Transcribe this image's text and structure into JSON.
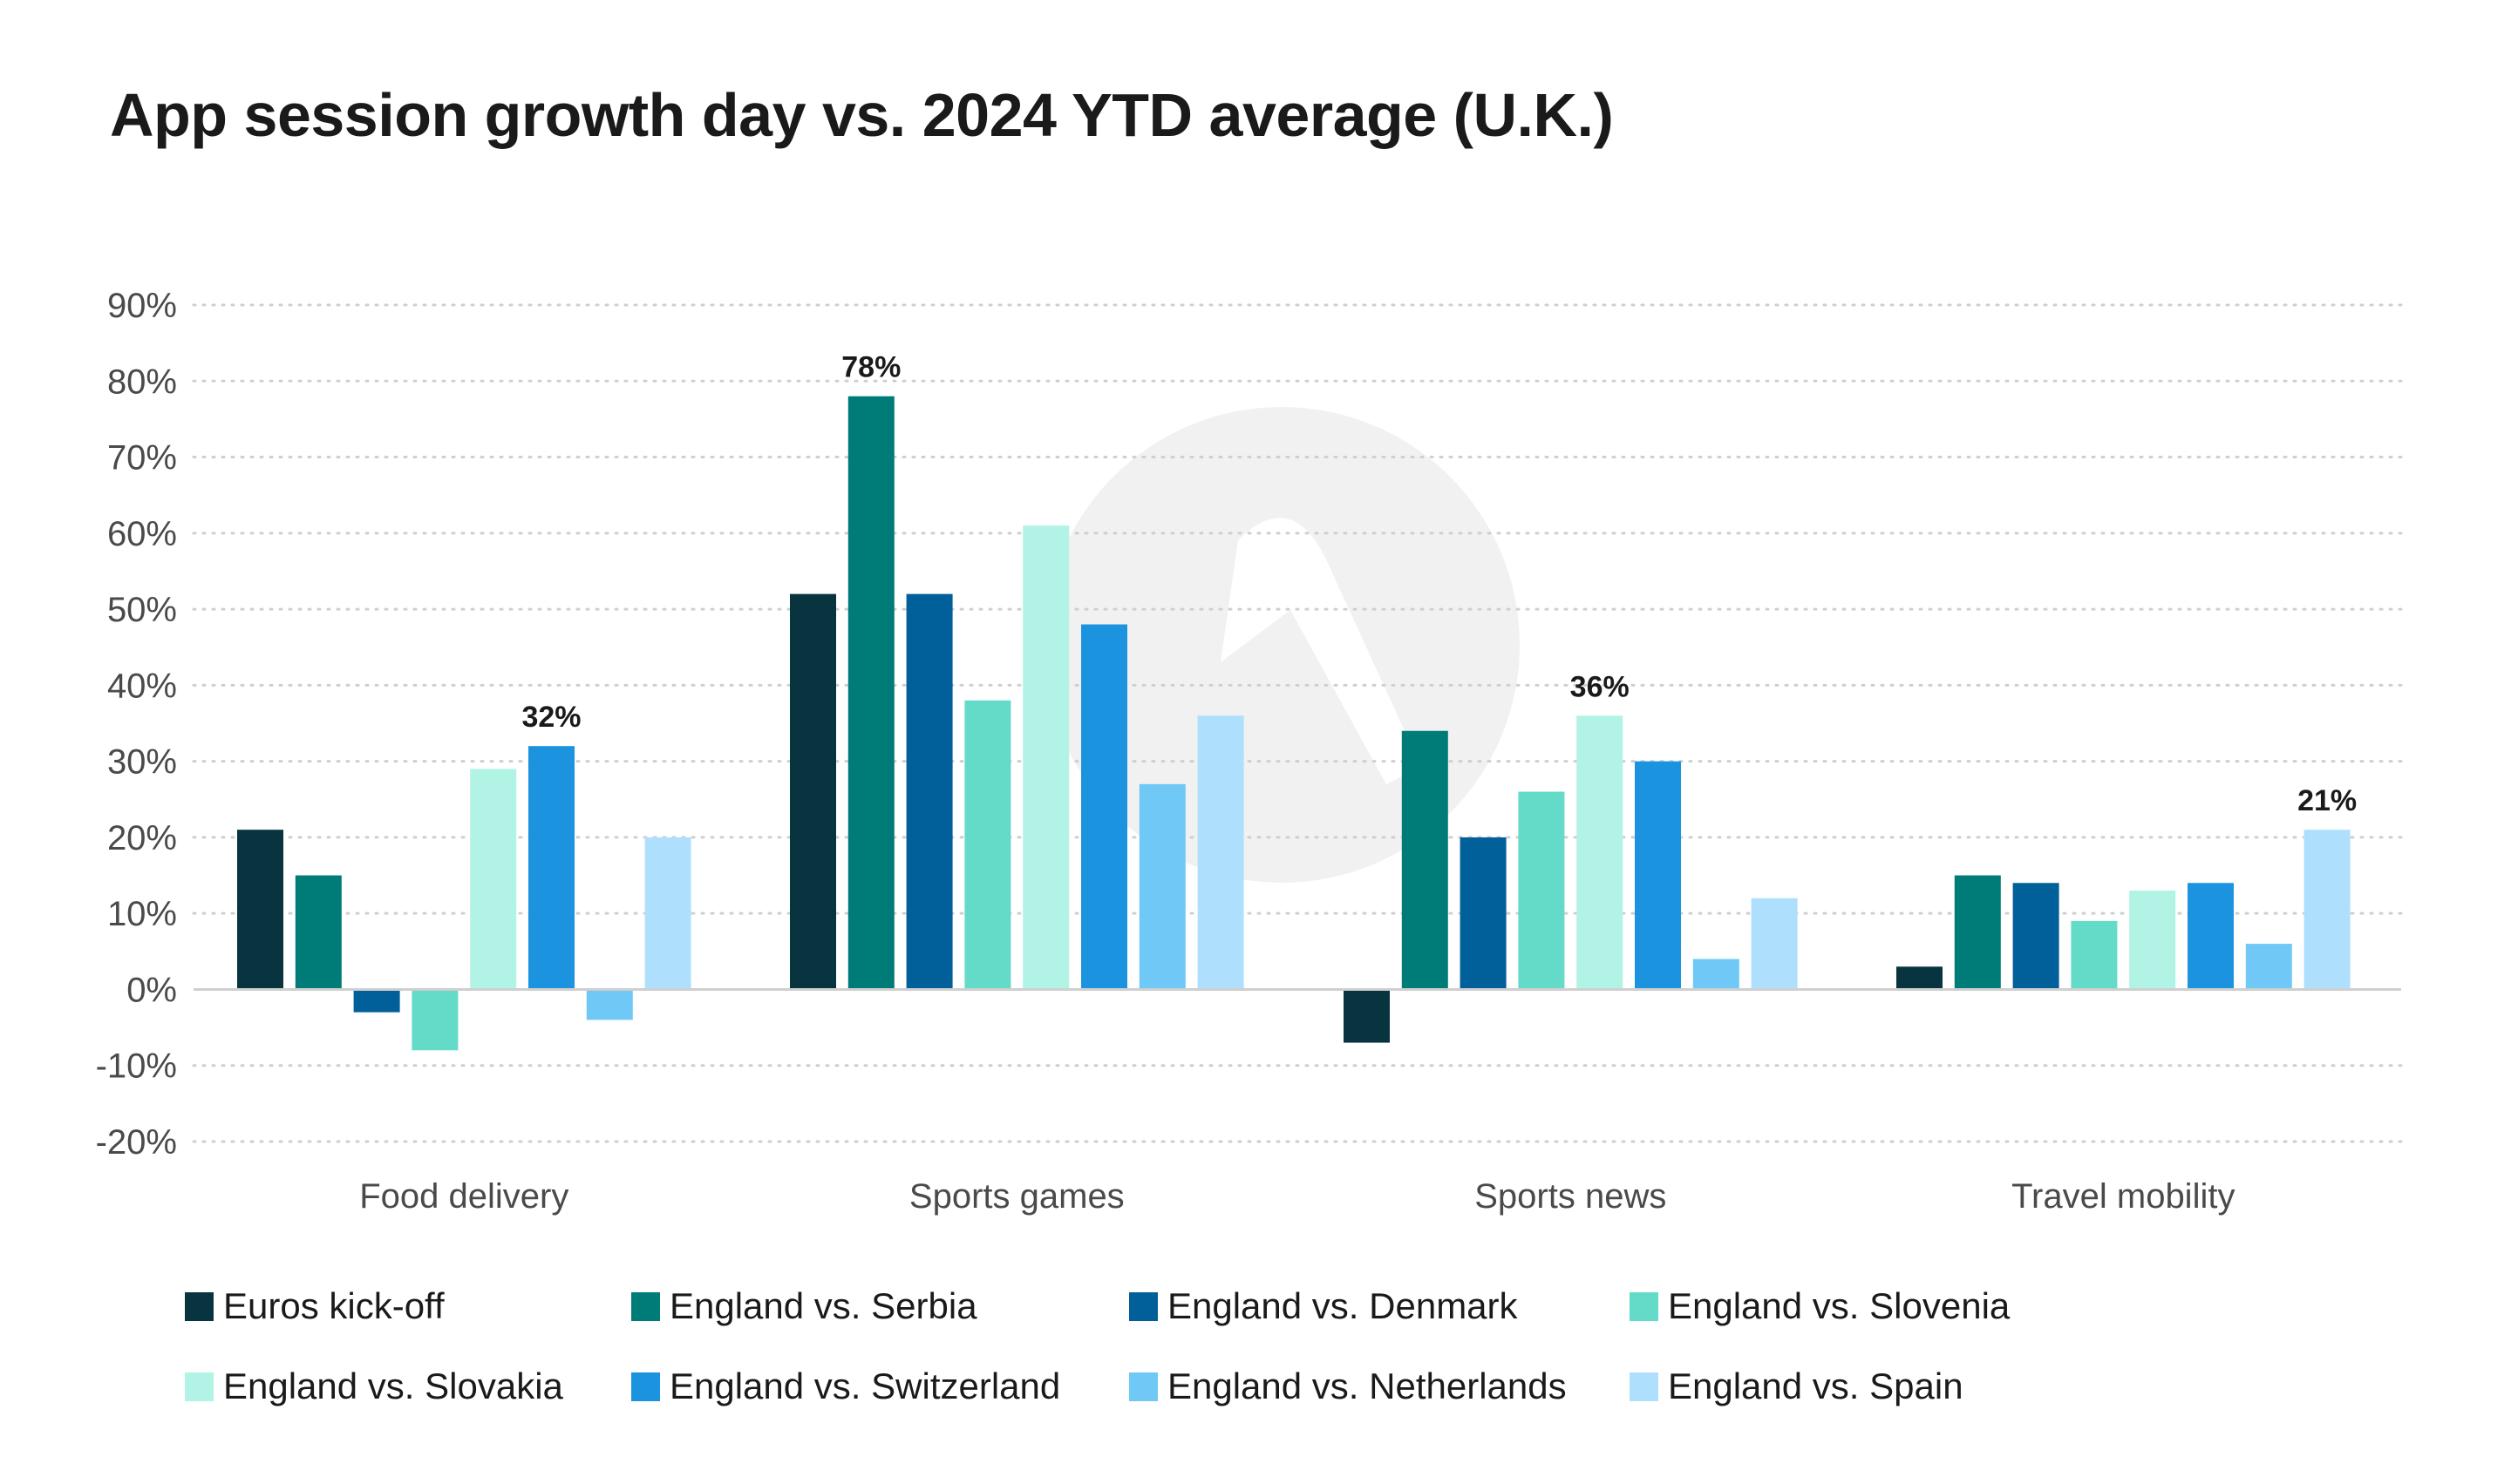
{
  "chart_data": {
    "type": "bar",
    "title": "App session growth day vs. 2024 YTD average (U.K.)",
    "categories": [
      "Food delivery",
      "Sports games",
      "Sports news",
      "Travel mobility"
    ],
    "series": [
      {
        "name": "Euros kick-off",
        "color": "#08343f",
        "values": [
          21,
          52,
          -7,
          3
        ]
      },
      {
        "name": "England vs. Serbia",
        "color": "#007c78",
        "values": [
          15,
          78,
          34,
          15
        ]
      },
      {
        "name": "England vs. Denmark",
        "color": "#015f99",
        "values": [
          -3,
          52,
          20,
          14
        ]
      },
      {
        "name": "England vs. Slovenia",
        "color": "#63dbc8",
        "values": [
          -8,
          38,
          26,
          9
        ]
      },
      {
        "name": "England vs. Slovakia",
        "color": "#b1f4e6",
        "values": [
          29,
          61,
          36,
          13
        ]
      },
      {
        "name": "England vs. Switzerland",
        "color": "#1c93de",
        "values": [
          32,
          48,
          30,
          14
        ]
      },
      {
        "name": "England vs. Netherlands",
        "color": "#6fc8f6",
        "values": [
          -4,
          27,
          4,
          6
        ]
      },
      {
        "name": "England vs. Spain",
        "color": "#aee0fd",
        "values": [
          20,
          36,
          12,
          21
        ]
      }
    ],
    "annotations": [
      {
        "category": "Food delivery",
        "series": "England vs. Switzerland",
        "text": "32%"
      },
      {
        "category": "Sports games",
        "series": "England vs. Serbia",
        "text": "78%"
      },
      {
        "category": "Sports news",
        "series": "England vs. Slovakia",
        "text": "36%"
      },
      {
        "category": "Travel mobility",
        "series": "England vs. Spain",
        "text": "21%"
      }
    ],
    "yticks": [
      "90%",
      "80%",
      "70%",
      "60%",
      "50%",
      "40%",
      "30%",
      "20%",
      "10%",
      "0%",
      "-10%",
      "-20%"
    ],
    "ylim": [
      -20,
      90
    ],
    "ytick_step": 10,
    "grid": true,
    "grid_style": "dotted",
    "legend_position": "bottom",
    "watermark": "circle-logo-icon"
  }
}
